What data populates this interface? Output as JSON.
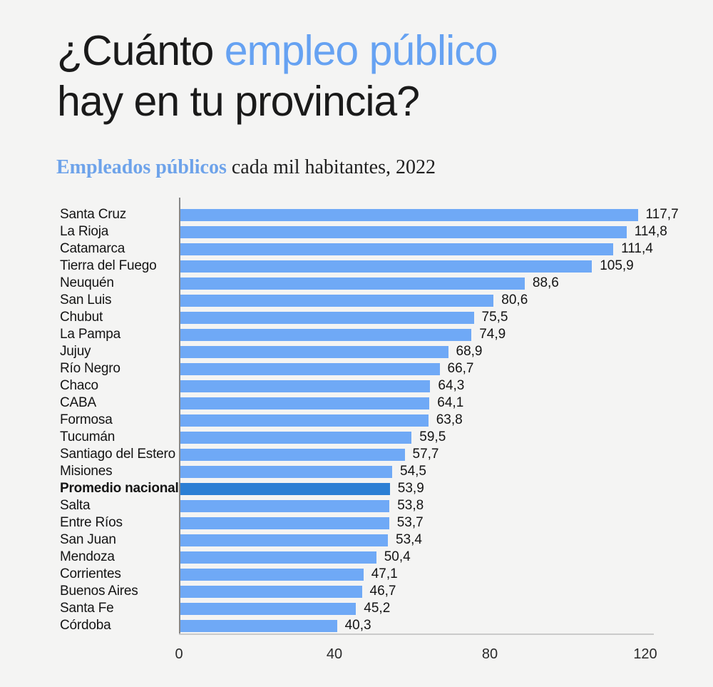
{
  "page": {
    "background_color": "#F4F4F3"
  },
  "header": {
    "title_prefix": "¿Cuánto ",
    "title_highlight": "empleo público",
    "title_line2": "hay en tu provincia?",
    "accent_color": "#66A2F2",
    "text_color": "#1A1A1A"
  },
  "subtitle": {
    "highlight": "Empleados públicos",
    "rest": " cada mil habitantes, 2022",
    "highlight_color": "#6EA3EA"
  },
  "chart_data": {
    "type": "bar",
    "orientation": "horizontal",
    "title": "Empleados públicos cada mil habitantes, 2022",
    "categories": [
      "Santa Cruz",
      "La Rioja",
      "Catamarca",
      "Tierra del Fuego",
      "Neuquén",
      "San Luis",
      "Chubut",
      "La Pampa",
      "Jujuy",
      "Río Negro",
      "Chaco",
      "CABA",
      "Formosa",
      "Tucumán",
      "Santiago del Estero",
      "Misiones",
      "Promedio nacional",
      "Salta",
      "Entre Ríos",
      "San Juan",
      "Mendoza",
      "Corrientes",
      "Buenos Aires",
      "Santa Fe",
      "Córdoba"
    ],
    "values": [
      117.7,
      114.8,
      111.4,
      105.9,
      88.6,
      80.6,
      75.5,
      74.9,
      68.9,
      66.7,
      64.3,
      64.1,
      63.8,
      59.5,
      57.7,
      54.5,
      53.9,
      53.8,
      53.7,
      53.4,
      50.4,
      47.1,
      46.7,
      45.2,
      40.3
    ],
    "value_labels": [
      "117,7",
      "114,8",
      "111,4",
      "105,9",
      "88,6",
      "80,6",
      "75,5",
      "74,9",
      "68,9",
      "66,7",
      "64,3",
      "64,1",
      "63,8",
      "59,5",
      "57,7",
      "54,5",
      "53,9",
      "53,8",
      "53,7",
      "53,4",
      "50,4",
      "47,1",
      "46,7",
      "45,2",
      "40,3"
    ],
    "highlight_index": 16,
    "highlight_category": "Promedio nacional",
    "bar_color": "#6FA9F6",
    "highlight_color": "#2C7FD4",
    "xlim": [
      0,
      120
    ],
    "x_ticks": [
      0,
      40,
      80,
      120
    ],
    "grid": false,
    "legend": false
  }
}
